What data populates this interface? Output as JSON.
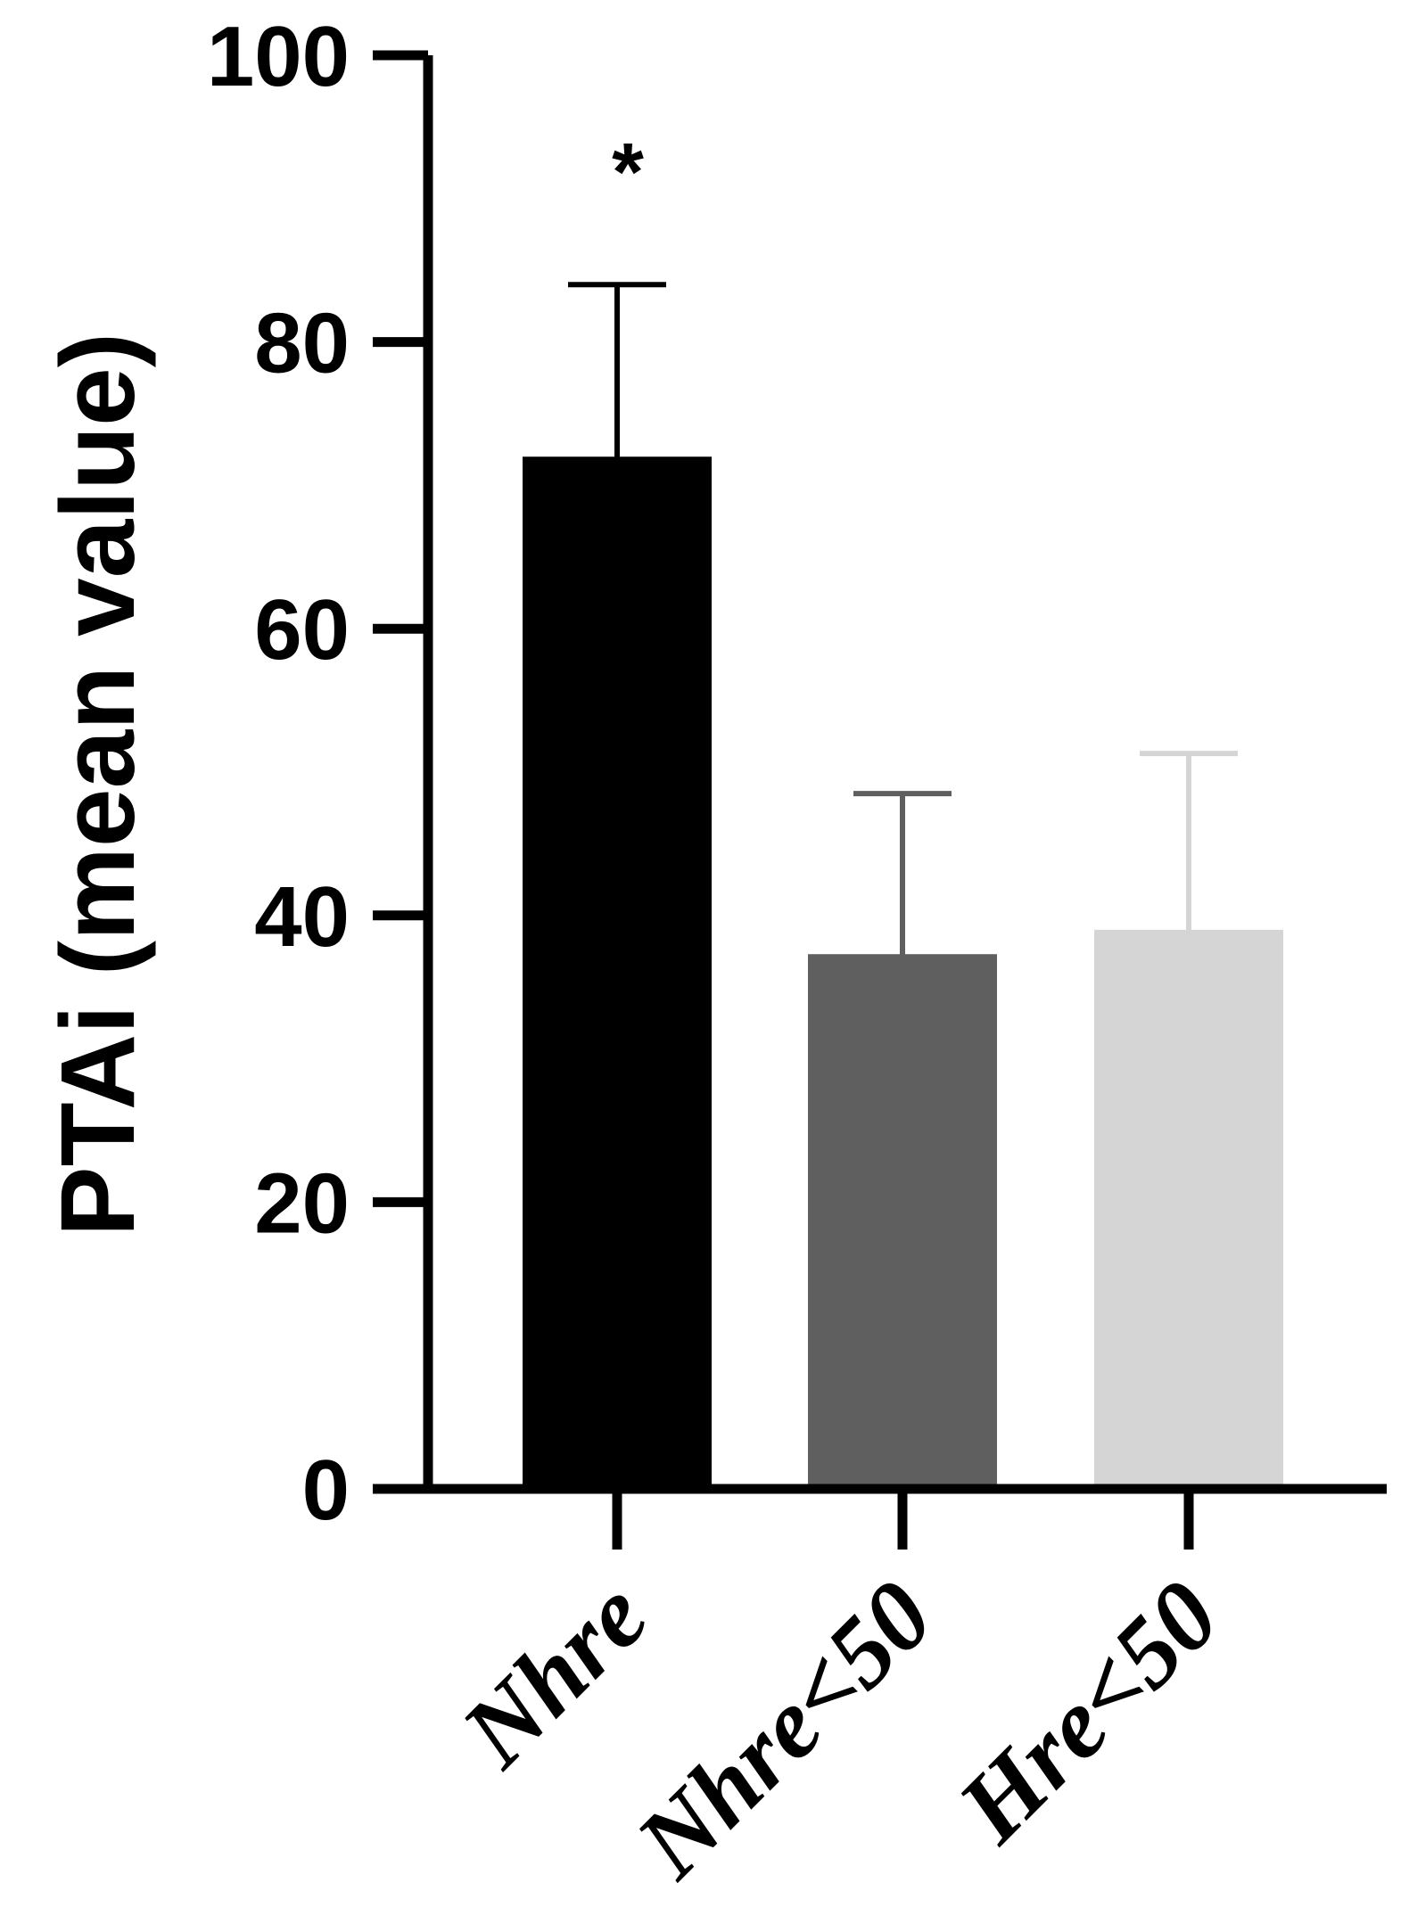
{
  "chart_data": {
    "type": "bar",
    "categories": [
      "Nhre",
      "Nhre<50",
      "Hre<50"
    ],
    "values": [
      72,
      37.3,
      39
    ],
    "errors": [
      12,
      11.2,
      12.3
    ],
    "colors": [
      "#000000",
      "#5f5f5f",
      "#d5d5d5"
    ],
    "title": "",
    "xlabel": "",
    "ylabel": "PTAi (mean value)",
    "ylim": [
      0,
      100
    ],
    "yticks": [
      0,
      20,
      40,
      60,
      80,
      100
    ],
    "annotations": [
      {
        "category": "Nhre",
        "text": "*"
      }
    ],
    "grid": false
  }
}
